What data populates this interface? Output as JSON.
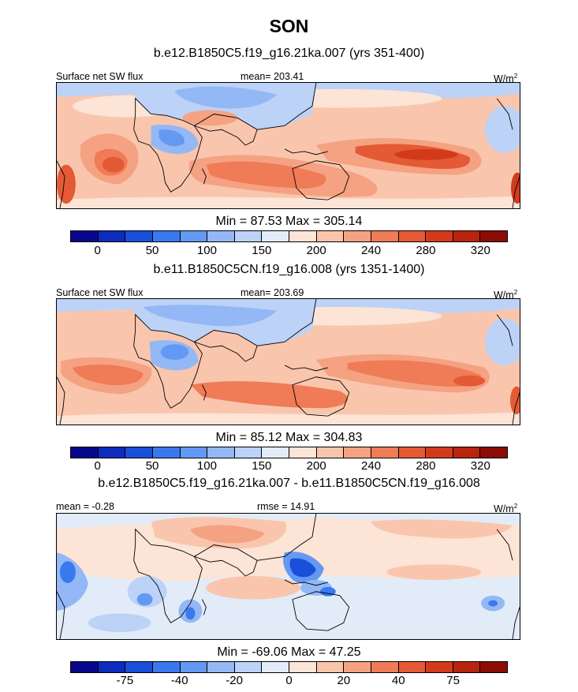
{
  "title": "SON",
  "colors": {
    "scale": [
      "#08088c",
      "#0d2cbd",
      "#1a4fd9",
      "#3a78ee",
      "#6499f3",
      "#93b8f5",
      "#bcd2f6",
      "#e2ecf8",
      "#fce4d6",
      "#f9c6ad",
      "#f5a282",
      "#ef7b57",
      "#e45a34",
      "#d33a1c",
      "#b8240f",
      "#8b0d05"
    ],
    "coast": "#000000"
  },
  "panels": [
    {
      "case_title": "b.e12.B1850C5.f19_g16.21ka.007 (yrs 351-400)",
      "left_label": "Surface net SW flux",
      "center_label": "mean= 203.41",
      "units": "W/m",
      "units_sup": "2",
      "minmax": "Min =  87.53 Max = 305.14",
      "colorbar_ticks": [
        "0",
        "50",
        "100",
        "150",
        "200",
        "240",
        "280",
        "320"
      ]
    },
    {
      "case_title": "b.e11.B1850C5CN.f19_g16.008 (yrs 1351-1400)",
      "left_label": "Surface net SW flux",
      "center_label": "mean= 203.69",
      "units": "W/m",
      "units_sup": "2",
      "minmax": "Min =  85.12 Max = 304.83",
      "colorbar_ticks": [
        "0",
        "50",
        "100",
        "150",
        "200",
        "240",
        "280",
        "320"
      ]
    },
    {
      "case_title": "b.e12.B1850C5.f19_g16.21ka.007 - b.e11.B1850C5CN.f19_g16.008",
      "left_label": "mean =  -0.28",
      "center_label": "rmse =  14.91",
      "units": "W/m",
      "units_sup": "2",
      "minmax": "Min = -69.06 Max =  47.25",
      "colorbar_ticks": [
        "-75",
        "-40",
        "-20",
        "0",
        "20",
        "40",
        "75"
      ]
    }
  ]
}
